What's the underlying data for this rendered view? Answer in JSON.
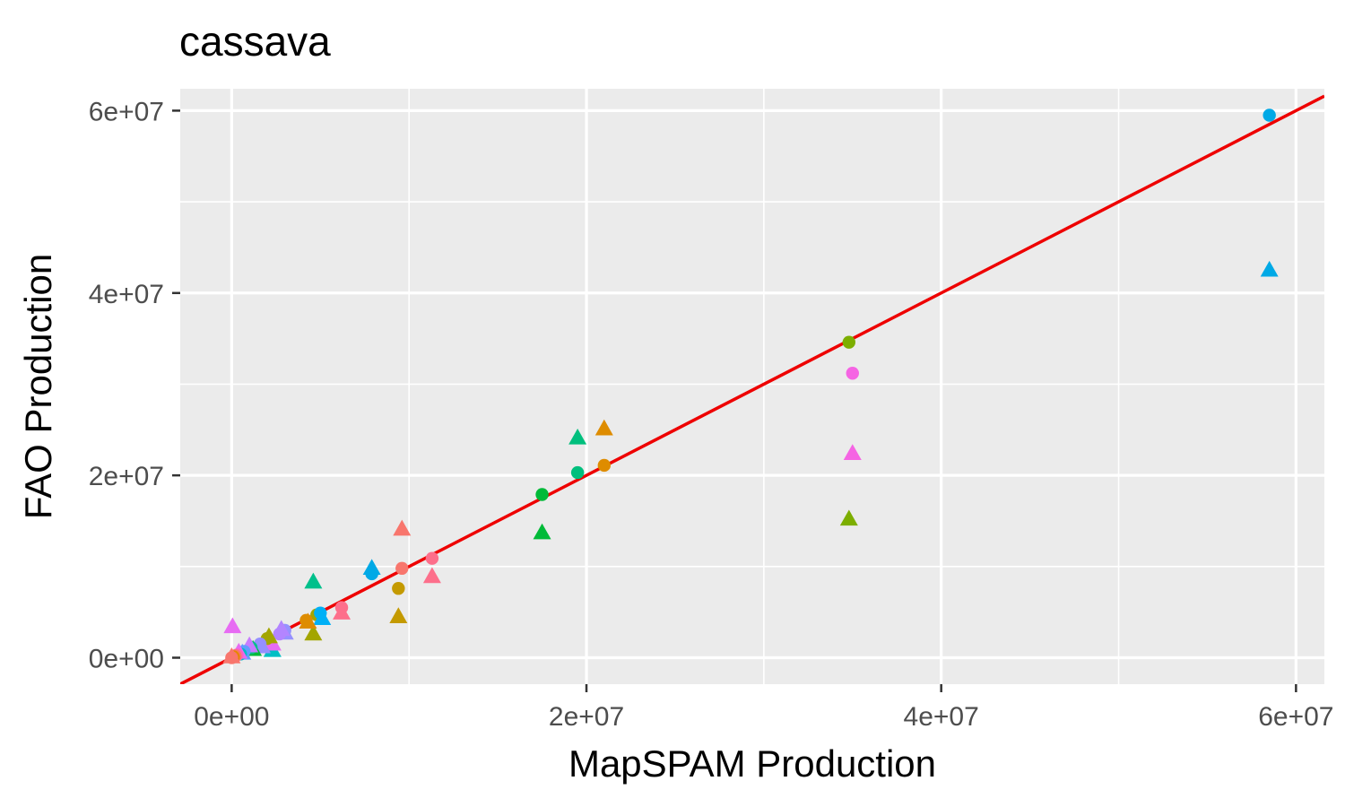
{
  "chart_data": {
    "type": "scatter",
    "title": "cassava",
    "xlabel": "MapSPAM Production",
    "ylabel": "FAO Production",
    "xlim": [
      -2900000,
      61600000
    ],
    "ylim": [
      -2900000,
      62400000
    ],
    "x_ticks": [
      0,
      20000000,
      40000000,
      60000000
    ],
    "x_tick_labels": [
      "0e+00",
      "2e+07",
      "4e+07",
      "6e+07"
    ],
    "y_ticks": [
      0,
      20000000,
      40000000,
      60000000
    ],
    "y_tick_labels": [
      "0e+00",
      "2e+07",
      "4e+07",
      "6e+07"
    ],
    "x_minor": [
      10000000,
      30000000,
      50000000
    ],
    "y_minor": [
      10000000,
      30000000,
      50000000
    ],
    "grid": true,
    "legend": "none",
    "reference_line": {
      "slope": 1,
      "intercept": 0,
      "color": "#ee0000"
    },
    "colors": {
      "panel": "#ebebeb",
      "grid": "#ffffff",
      "tick_text": "#4d4d4d",
      "tick_mark": "#333333"
    },
    "points": [
      {
        "x": 58500000,
        "y": 59500000,
        "shape": "circle",
        "color": "#00a9e6"
      },
      {
        "x": 58500000,
        "y": 42500000,
        "shape": "triangle",
        "color": "#00a9e6"
      },
      {
        "x": 34800000,
        "y": 34600000,
        "shape": "circle",
        "color": "#7cae00"
      },
      {
        "x": 34800000,
        "y": 15200000,
        "shape": "triangle",
        "color": "#7cae00"
      },
      {
        "x": 35000000,
        "y": 31200000,
        "shape": "circle",
        "color": "#f564e3"
      },
      {
        "x": 35000000,
        "y": 22400000,
        "shape": "triangle",
        "color": "#f564e3"
      },
      {
        "x": 21000000,
        "y": 21100000,
        "shape": "circle",
        "color": "#de8c00"
      },
      {
        "x": 21000000,
        "y": 25100000,
        "shape": "triangle",
        "color": "#de8c00"
      },
      {
        "x": 19500000,
        "y": 20300000,
        "shape": "circle",
        "color": "#00bf7d"
      },
      {
        "x": 19500000,
        "y": 24100000,
        "shape": "triangle",
        "color": "#00bf7d"
      },
      {
        "x": 17500000,
        "y": 17900000,
        "shape": "circle",
        "color": "#00ba38"
      },
      {
        "x": 17500000,
        "y": 13700000,
        "shape": "triangle",
        "color": "#00ba38"
      },
      {
        "x": 11300000,
        "y": 10900000,
        "shape": "circle",
        "color": "#fd6f8b"
      },
      {
        "x": 11300000,
        "y": 8900000,
        "shape": "triangle",
        "color": "#fd6f8b"
      },
      {
        "x": 9600000,
        "y": 9800000,
        "shape": "circle",
        "color": "#f8766d"
      },
      {
        "x": 9600000,
        "y": 14100000,
        "shape": "triangle",
        "color": "#f8766d"
      },
      {
        "x": 9400000,
        "y": 7600000,
        "shape": "circle",
        "color": "#c49a00"
      },
      {
        "x": 9400000,
        "y": 4500000,
        "shape": "triangle",
        "color": "#c49a00"
      },
      {
        "x": 7900000,
        "y": 9200000,
        "shape": "circle",
        "color": "#00a9e6"
      },
      {
        "x": 7900000,
        "y": 9800000,
        "shape": "triangle",
        "color": "#00a9e6"
      },
      {
        "x": 6200000,
        "y": 5500000,
        "shape": "circle",
        "color": "#fd6f8b"
      },
      {
        "x": 6200000,
        "y": 4900000,
        "shape": "triangle",
        "color": "#fd6f8b"
      },
      {
        "x": 4600000,
        "y": 8300000,
        "shape": "triangle",
        "color": "#00c08b"
      },
      {
        "x": 4600000,
        "y": 2600000,
        "shape": "triangle",
        "color": "#a3a500"
      },
      {
        "x": 4800000,
        "y": 4700000,
        "shape": "circle",
        "color": "#a3a500"
      },
      {
        "x": 5000000,
        "y": 4900000,
        "shape": "circle",
        "color": "#00b0f6"
      },
      {
        "x": 5100000,
        "y": 4300000,
        "shape": "triangle",
        "color": "#00b0f6"
      },
      {
        "x": 4200000,
        "y": 4100000,
        "shape": "circle",
        "color": "#de8c00"
      },
      {
        "x": 4300000,
        "y": 3900000,
        "shape": "triangle",
        "color": "#de8c00"
      },
      {
        "x": 3000000,
        "y": 3000000,
        "shape": "circle",
        "color": "#9590ff"
      },
      {
        "x": 3000000,
        "y": 2700000,
        "shape": "triangle",
        "color": "#9590ff"
      },
      {
        "x": 2700000,
        "y": 2600000,
        "shape": "circle",
        "color": "#b385ff"
      },
      {
        "x": 2800000,
        "y": 3100000,
        "shape": "triangle",
        "color": "#b385ff"
      },
      {
        "x": 2300000,
        "y": 800000,
        "shape": "triangle",
        "color": "#00bfc4"
      },
      {
        "x": 2300000,
        "y": 1500000,
        "shape": "triangle",
        "color": "#e76bf3"
      },
      {
        "x": 2000000,
        "y": 2100000,
        "shape": "circle",
        "color": "#a3a500"
      },
      {
        "x": 2100000,
        "y": 2300000,
        "shape": "triangle",
        "color": "#a3a500"
      },
      {
        "x": 1600000,
        "y": 1500000,
        "shape": "circle",
        "color": "#9590ff"
      },
      {
        "x": 1700000,
        "y": 1200000,
        "shape": "triangle",
        "color": "#9590ff"
      },
      {
        "x": 1200000,
        "y": 900000,
        "shape": "triangle",
        "color": "#00ba38"
      },
      {
        "x": 1100000,
        "y": 1100000,
        "shape": "circle",
        "color": "#00c08b"
      },
      {
        "x": 1000000,
        "y": 1300000,
        "shape": "triangle",
        "color": "#c77cff"
      },
      {
        "x": 700000,
        "y": 700000,
        "shape": "circle",
        "color": "#619cff"
      },
      {
        "x": 600000,
        "y": 500000,
        "shape": "triangle",
        "color": "#619cff"
      },
      {
        "x": 500000,
        "y": 400000,
        "shape": "circle",
        "color": "#00bfc4"
      },
      {
        "x": 400000,
        "y": 600000,
        "shape": "triangle",
        "color": "#e76bf3"
      },
      {
        "x": 300000,
        "y": 300000,
        "shape": "circle",
        "color": "#ff62bc"
      },
      {
        "x": 200000,
        "y": 200000,
        "shape": "circle",
        "color": "#f8766d"
      },
      {
        "x": 100000,
        "y": 100000,
        "shape": "circle",
        "color": "#e58700"
      },
      {
        "x": 50000,
        "y": 3400000,
        "shape": "triangle",
        "color": "#e76bf3"
      },
      {
        "x": 0,
        "y": 0,
        "shape": "circle",
        "color": "#f8766d"
      },
      {
        "x": 0,
        "y": 100000,
        "shape": "triangle",
        "color": "#f8766d"
      }
    ]
  }
}
